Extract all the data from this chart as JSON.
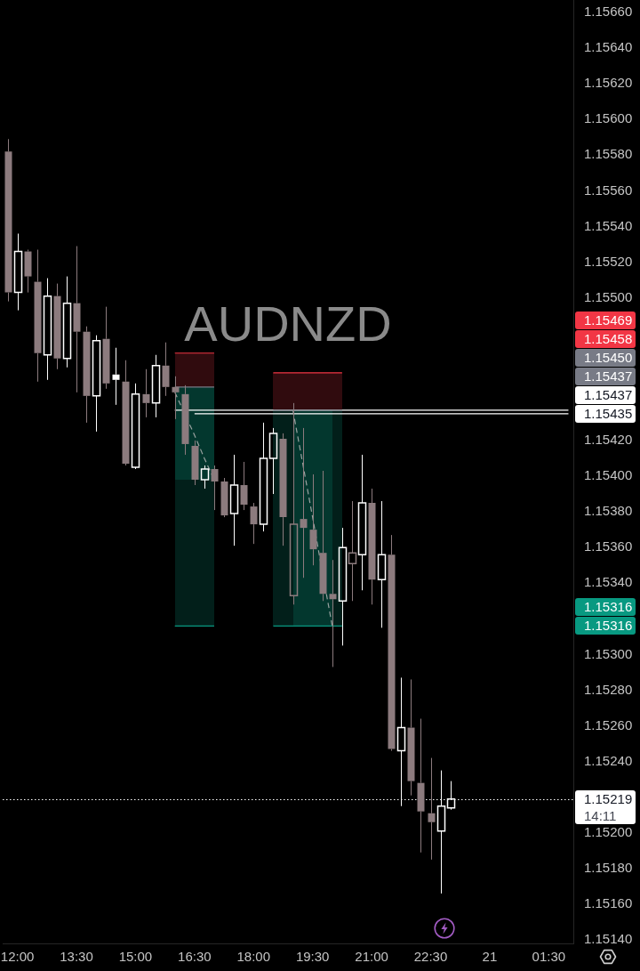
{
  "chart_data": {
    "type": "candlestick",
    "title": "AUDNZD",
    "legend": "right",
    "categories": [
      null,
      "12:00",
      null,
      null,
      null,
      null,
      null,
      "13:30",
      null,
      null,
      null,
      null,
      null,
      "15:00",
      null,
      null,
      null,
      null,
      null,
      "16:30",
      null,
      null,
      null,
      null,
      null,
      "18:00",
      null,
      null,
      null,
      null,
      null,
      "19:30",
      null,
      null,
      null,
      null,
      null,
      "21:00",
      null,
      null,
      null,
      null,
      null,
      "22:30",
      null,
      null,
      null,
      null,
      null,
      "21",
      null,
      null,
      null,
      null,
      null,
      "01:30",
      null,
      null
    ],
    "series": [
      {
        "ohlc": [
          [
            1.15582,
            1.15589,
            1.15498,
            1.15503
          ],
          [
            1.15503,
            1.15536,
            1.15493,
            1.15526
          ],
          [
            1.15526,
            1.15527,
            1.15503,
            1.15512
          ],
          [
            1.15509,
            1.15527,
            1.15453,
            1.15469
          ],
          [
            1.15468,
            1.15511,
            1.15454,
            1.15501
          ],
          [
            1.15501,
            1.15508,
            1.1546,
            1.15466
          ],
          [
            1.15466,
            1.15512,
            1.15461,
            1.15497
          ],
          [
            1.15497,
            1.15529,
            1.15447,
            1.15481
          ],
          [
            1.15481,
            1.15484,
            1.1543,
            1.15445
          ],
          [
            1.15445,
            1.15479,
            1.15425,
            1.15476
          ],
          [
            1.15477,
            1.15495,
            1.15449,
            1.15452
          ],
          [
            1.15457,
            1.15472,
            1.1544,
            1.15454
          ],
          [
            1.15453,
            1.15465,
            1.15406,
            1.15407
          ],
          [
            1.15405,
            1.15452,
            1.15404,
            1.15446
          ],
          [
            1.15446,
            1.1546,
            1.15433,
            1.15441
          ],
          [
            1.15441,
            1.15468,
            1.15433,
            1.15462
          ],
          [
            1.15462,
            1.15475,
            1.15445,
            1.1545
          ],
          [
            1.1545,
            1.15456,
            1.15432,
            1.15447
          ],
          [
            1.15446,
            1.15451,
            1.15412,
            1.15418
          ],
          [
            1.15417,
            1.1542,
            1.15395,
            1.15398
          ],
          [
            1.15398,
            1.15406,
            1.15393,
            1.15404
          ],
          [
            1.15404,
            1.15406,
            1.15381,
            1.15397
          ],
          [
            1.15397,
            1.15399,
            1.15377,
            1.15378
          ],
          [
            1.15379,
            1.15412,
            1.15361,
            1.15395
          ],
          [
            1.15395,
            1.15408,
            1.15381,
            1.15384
          ],
          [
            1.15383,
            1.15385,
            1.15362,
            1.15373
          ],
          [
            1.15373,
            1.1543,
            1.15369,
            1.1541
          ],
          [
            1.1541,
            1.15427,
            1.1539,
            1.15424
          ],
          [
            1.15421,
            1.15424,
            1.15361,
            1.15377
          ],
          [
            1.15333,
            1.15441,
            1.15328,
            1.15373
          ],
          [
            1.15376,
            1.15427,
            1.15343,
            1.15371
          ],
          [
            1.1537,
            1.15401,
            1.1535,
            1.15359
          ],
          [
            1.15357,
            1.15403,
            1.1533,
            1.15334
          ],
          [
            1.15334,
            1.15353,
            1.15293,
            1.15331
          ],
          [
            1.1533,
            1.15371,
            1.15305,
            1.1536
          ],
          [
            1.15351,
            1.15386,
            1.1533,
            1.15357
          ],
          [
            1.15356,
            1.15412,
            1.15336,
            1.15385
          ],
          [
            1.15385,
            1.15393,
            1.15328,
            1.15342
          ],
          [
            1.15342,
            1.15386,
            1.15315,
            1.15356
          ],
          [
            1.15356,
            1.15367,
            1.15246,
            1.15247
          ],
          [
            1.15246,
            1.15287,
            1.15215,
            1.15259
          ],
          [
            1.15259,
            1.15286,
            1.15221,
            1.15229
          ],
          [
            1.15228,
            1.15264,
            1.15189,
            1.15212
          ],
          [
            1.15211,
            1.15242,
            1.15185,
            1.15206
          ],
          [
            1.15201,
            1.15235,
            1.15166,
            1.15215
          ],
          [
            1.15214,
            1.15229,
            1.15213,
            1.15219
          ],
          null,
          null,
          null,
          null,
          null,
          null,
          null,
          null,
          null,
          null,
          null,
          null
        ],
        "colors": [
          "#8c7b7e",
          "#ffffff",
          "#8c7b7e",
          "#8c7b7e",
          "#ffffff",
          "#8c7b7e",
          "#ffffff",
          "#8c7b7e",
          "#8c7b7e",
          "#ffffff",
          "#8c7b7e",
          "#ffffff",
          "#8c7b7e",
          "#ffffff",
          "#8c7b7e",
          "#ffffff",
          "#8c7b7e",
          "#8c7b7e",
          "#8c7b7e",
          "#8c7b7e",
          "#ffffff",
          "#8c7b7e",
          "#8c7b7e",
          "#ffffff",
          "#8c7b7e",
          "#8c7b7e",
          "#ffffff",
          "#ffffff",
          "#8c7b7e",
          "#8c7b7e",
          "#8c7b7e",
          "#8c7b7e",
          "#8c7b7e",
          "#8c7b7e",
          "#ffffff",
          "#8c7b7e",
          "#ffffff",
          "#8c7b7e",
          "#ffffff",
          "#8c7b7e",
          "#ffffff",
          "#8c7b7e",
          "#8c7b7e",
          "#8c7b7e",
          "#ffffff",
          "#ffffff",
          null,
          null,
          null,
          null,
          null,
          null,
          null,
          null,
          null,
          null,
          null,
          null
        ]
      },
      {
        "type": "line",
        "name": "1.15437",
        "color": "#ffffff",
        "values": [
          null,
          null,
          null,
          null,
          null,
          null,
          null,
          null,
          null,
          null,
          null,
          null,
          null,
          null,
          null,
          null,
          null,
          1.15437,
          1.15437,
          1.15437,
          1.15437,
          1.15437,
          1.15437,
          1.15437,
          1.15437,
          1.15437,
          1.15437,
          1.15437,
          1.15437,
          1.15437,
          1.15437,
          1.15437,
          1.15437,
          1.15437,
          1.15437,
          1.15437,
          1.15437,
          1.15437,
          1.15437,
          1.15437,
          1.15437,
          1.15437,
          1.15437,
          1.15437,
          1.15437,
          1.15437,
          1.15437,
          1.15437,
          1.15437,
          1.15437,
          1.15437,
          1.15437,
          1.15437,
          1.15437,
          1.15437,
          1.15437,
          1.15437,
          1.15437
        ]
      },
      {
        "type": "line",
        "name": "1.15435",
        "color": "#ffffff",
        "values": [
          null,
          null,
          null,
          null,
          null,
          null,
          null,
          null,
          null,
          null,
          null,
          null,
          null,
          null,
          null,
          null,
          null,
          null,
          null,
          1.15435,
          1.15435,
          1.15435,
          1.15435,
          1.15435,
          1.15435,
          1.15435,
          1.15435,
          1.15435,
          1.15435,
          1.15435,
          1.15435,
          1.15435,
          1.15435,
          1.15435,
          1.15435,
          1.15435,
          1.15435,
          1.15435,
          1.15435,
          1.15435,
          1.15435,
          1.15435,
          1.15435,
          1.15435,
          1.15435,
          1.15435,
          1.15435,
          1.15435,
          1.15435,
          1.15435,
          1.15435,
          1.15435,
          1.15435,
          1.15435,
          1.15435,
          1.15435,
          1.15435,
          1.15435
        ]
      },
      {
        "type": "line",
        "color": "#9aa3a1",
        "line_style": "dashed",
        "values": [
          null,
          null,
          null,
          null,
          null,
          null,
          null,
          null,
          null,
          null,
          null,
          null,
          null,
          null,
          null,
          null,
          null,
          1.15447,
          1.15435,
          1.15423,
          1.1541,
          1.15398,
          null,
          null,
          null,
          null,
          null,
          null,
          null,
          null,
          null,
          null,
          null,
          null,
          null,
          null,
          null,
          null,
          null,
          null,
          null,
          null,
          null,
          null,
          null,
          null,
          null,
          null,
          null,
          null,
          null,
          null,
          null,
          null,
          null,
          null,
          null,
          null
        ]
      },
      {
        "type": "line",
        "color": "#9aa3a1",
        "line_style": "dashed",
        "values": [
          null,
          null,
          null,
          null,
          null,
          null,
          null,
          null,
          null,
          null,
          null,
          null,
          null,
          null,
          null,
          null,
          null,
          null,
          null,
          null,
          null,
          null,
          null,
          null,
          null,
          null,
          null,
          null,
          null,
          1.15437,
          1.15407,
          1.15377,
          1.15346,
          1.15316,
          null,
          null,
          null,
          null,
          null,
          null,
          null,
          null,
          null,
          null,
          null,
          null,
          null,
          null,
          null,
          null,
          null,
          null,
          null,
          null,
          null,
          null,
          null,
          null
        ]
      },
      {
        "type": "line",
        "name": "1.15469",
        "color": "#f23645",
        "values": [
          null,
          null,
          null,
          null,
          null,
          null,
          null,
          null,
          null,
          null,
          null,
          null,
          null,
          null,
          null,
          null,
          null,
          1.15469,
          1.15469,
          1.15469,
          1.15469,
          1.15469,
          null,
          null,
          null,
          null,
          null,
          null,
          null,
          null,
          null,
          null,
          null,
          null,
          null,
          null,
          null,
          null,
          null,
          null,
          null,
          null,
          null,
          null,
          null,
          null,
          null,
          null,
          null,
          null,
          null,
          null,
          null,
          null,
          null,
          null,
          null,
          null
        ]
      },
      {
        "type": "line",
        "name": "1.15450",
        "color": "#787b86",
        "values": [
          null,
          null,
          null,
          null,
          null,
          null,
          null,
          null,
          null,
          null,
          null,
          null,
          null,
          null,
          null,
          null,
          null,
          1.1545,
          1.1545,
          1.1545,
          1.1545,
          1.1545,
          null,
          null,
          null,
          null,
          null,
          null,
          null,
          null,
          null,
          null,
          null,
          null,
          null,
          null,
          null,
          null,
          null,
          null,
          null,
          null,
          null,
          null,
          null,
          null,
          null,
          null,
          null,
          null,
          null,
          null,
          null,
          null,
          null,
          null,
          null,
          null
        ]
      },
      {
        "type": "line",
        "name": "1.15316",
        "color": "#089981",
        "values": [
          null,
          null,
          null,
          null,
          null,
          null,
          null,
          null,
          null,
          null,
          null,
          null,
          null,
          null,
          null,
          null,
          null,
          1.15316,
          1.15316,
          1.15316,
          1.15316,
          1.15316,
          null,
          null,
          null,
          null,
          null,
          null,
          null,
          null,
          null,
          null,
          null,
          null,
          null,
          null,
          null,
          null,
          null,
          null,
          null,
          null,
          null,
          null,
          null,
          null,
          null,
          null,
          null,
          null,
          null,
          null,
          null,
          null,
          null,
          null,
          null,
          null
        ]
      },
      {
        "type": "line",
        "name": "1.15458",
        "color": "#f23645",
        "values": [
          null,
          null,
          null,
          null,
          null,
          null,
          null,
          null,
          null,
          null,
          null,
          null,
          null,
          null,
          null,
          null,
          null,
          null,
          null,
          null,
          null,
          null,
          null,
          null,
          null,
          null,
          null,
          1.15458,
          1.15458,
          1.15458,
          1.15458,
          1.15458,
          1.15458,
          1.15458,
          1.15458,
          null,
          null,
          null,
          null,
          null,
          null,
          null,
          null,
          null,
          null,
          null,
          null,
          null,
          null,
          null,
          null,
          null,
          null,
          null,
          null,
          null,
          null,
          null
        ]
      },
      {
        "type": "line",
        "name": "1.15437",
        "color": "#787b86",
        "values": [
          null,
          null,
          null,
          null,
          null,
          null,
          null,
          null,
          null,
          null,
          null,
          null,
          null,
          null,
          null,
          null,
          null,
          null,
          null,
          null,
          null,
          null,
          null,
          null,
          null,
          null,
          null,
          1.15437,
          1.15437,
          1.15437,
          1.15437,
          1.15437,
          1.15437,
          1.15437,
          1.15437,
          null,
          null,
          null,
          null,
          null,
          null,
          null,
          null,
          null,
          null,
          null,
          null,
          null,
          null,
          null,
          null,
          null,
          null,
          null,
          null,
          null,
          null,
          null
        ]
      },
      {
        "type": "line",
        "name": "1.15316",
        "color": "#089981",
        "values": [
          null,
          null,
          null,
          null,
          null,
          null,
          null,
          null,
          null,
          null,
          null,
          null,
          null,
          null,
          null,
          null,
          null,
          null,
          null,
          null,
          null,
          null,
          null,
          null,
          null,
          null,
          null,
          1.15316,
          1.15316,
          1.15316,
          1.15316,
          1.15316,
          1.15316,
          1.15316,
          1.15316,
          null,
          null,
          null,
          null,
          null,
          null,
          null,
          null,
          null,
          null,
          null,
          null,
          null,
          null,
          null,
          null,
          null,
          null,
          null,
          null,
          null,
          null,
          null
        ]
      }
    ],
    "ref_lines": [
      {
        "axis": "y",
        "value": 1.15219,
        "label": "1.15219\n14:11",
        "color": "#ffffff",
        "line_style": "dotted"
      }
    ],
    "ylim": [
      1.15138,
      1.15667
    ],
    "yticks": [
      {
        "value": 1.1566,
        "label": "1.15660"
      },
      {
        "value": 1.1564,
        "label": "1.15640"
      },
      {
        "value": 1.1562,
        "label": "1.15620"
      },
      {
        "value": 1.156,
        "label": "1.15600"
      },
      {
        "value": 1.1558,
        "label": "1.15580"
      },
      {
        "value": 1.1556,
        "label": "1.15560"
      },
      {
        "value": 1.1554,
        "label": "1.15540"
      },
      {
        "value": 1.1552,
        "label": "1.15520"
      },
      {
        "value": 1.155,
        "label": "1.15500"
      },
      {
        "value": 1.1542,
        "label": "1.15420"
      },
      {
        "value": 1.154,
        "label": "1.15400"
      },
      {
        "value": 1.1538,
        "label": "1.15380"
      },
      {
        "value": 1.1536,
        "label": "1.15360"
      },
      {
        "value": 1.1534,
        "label": "1.15340"
      },
      {
        "value": 1.153,
        "label": "1.15300"
      },
      {
        "value": 1.1528,
        "label": "1.15280"
      },
      {
        "value": 1.1526,
        "label": "1.15260"
      },
      {
        "value": 1.1524,
        "label": "1.15240"
      },
      {
        "value": 1.152,
        "label": "1.15200"
      },
      {
        "value": 1.1518,
        "label": "1.15180"
      },
      {
        "value": 1.1516,
        "label": "1.15160"
      },
      {
        "value": 1.1514,
        "label": "1.15140"
      }
    ]
  }
}
